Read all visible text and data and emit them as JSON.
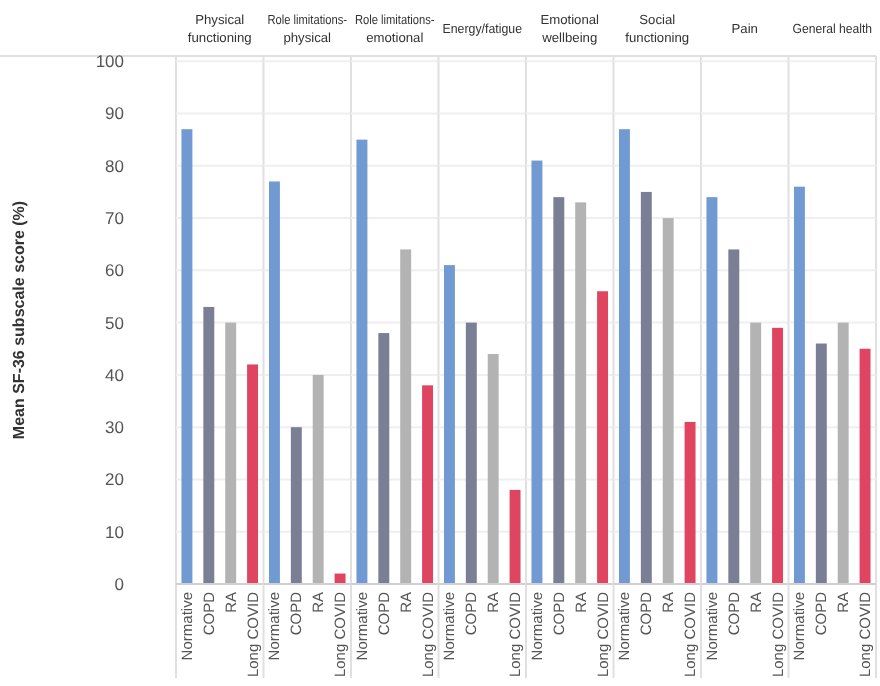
{
  "chart_data": [
    {
      "type": "bar",
      "title": "Physical functioning",
      "ylabel": "Mean SF-36 subscale score (%)",
      "categories": [
        "Normative",
        "COPD",
        "RA",
        "Long COVID"
      ],
      "values": [
        87,
        53,
        50,
        42
      ],
      "colors": [
        "#7199d2",
        "#7b7f95",
        "#b3b3b3",
        "#df4561"
      ],
      "ylim": [
        0,
        101
      ],
      "yticks": [
        0,
        10,
        20,
        30,
        40,
        50,
        60,
        70,
        80,
        90,
        100
      ],
      "grid": "y"
    },
    {
      "type": "bar",
      "title": "Role limitations-physical",
      "categories": [
        "Normative",
        "COPD",
        "RA",
        "Long COVID"
      ],
      "values": [
        77,
        30,
        40,
        2
      ],
      "colors": [
        "#7199d2",
        "#7b7f95",
        "#b3b3b3",
        "#df4561"
      ],
      "ylim": [
        0,
        101
      ],
      "yticks": [
        0,
        10,
        20,
        30,
        40,
        50,
        60,
        70,
        80,
        90,
        100
      ],
      "grid": "y",
      "tick_labels": "x"
    },
    {
      "type": "bar",
      "title": "Role limitations-emotional",
      "categories": [
        "Normative",
        "COPD",
        "RA",
        "Long COVID"
      ],
      "values": [
        85,
        48,
        64,
        38
      ],
      "colors": [
        "#7199d2",
        "#7b7f95",
        "#b3b3b3",
        "#df4561"
      ],
      "ylim": [
        0,
        101
      ],
      "yticks": [
        0,
        10,
        20,
        30,
        40,
        50,
        60,
        70,
        80,
        90,
        100
      ],
      "grid": "y",
      "tick_labels": "x"
    },
    {
      "type": "bar",
      "title": "Energy/fatigue",
      "categories": [
        "Normative",
        "COPD",
        "RA",
        "Long COVID"
      ],
      "values": [
        61,
        50,
        44,
        18
      ],
      "colors": [
        "#7199d2",
        "#7b7f95",
        "#b3b3b3",
        "#df4561"
      ],
      "ylim": [
        0,
        101
      ],
      "yticks": [
        0,
        10,
        20,
        30,
        40,
        50,
        60,
        70,
        80,
        90,
        100
      ],
      "grid": "y",
      "tick_labels": "x"
    },
    {
      "type": "bar",
      "title": "Emotional wellbeing",
      "categories": [
        "Normative",
        "COPD",
        "RA",
        "Long COVID"
      ],
      "values": [
        81,
        74,
        73,
        56
      ],
      "colors": [
        "#7199d2",
        "#7b7f95",
        "#b3b3b3",
        "#df4561"
      ],
      "ylim": [
        0,
        101
      ],
      "yticks": [
        0,
        10,
        20,
        30,
        40,
        50,
        60,
        70,
        80,
        90,
        100
      ],
      "grid": "y",
      "tick_labels": "x"
    },
    {
      "type": "bar",
      "title": "Social functioning",
      "categories": [
        "Normative",
        "COPD",
        "RA",
        "Long COVID"
      ],
      "values": [
        87,
        75,
        70,
        31
      ],
      "colors": [
        "#7199d2",
        "#7b7f95",
        "#b3b3b3",
        "#df4561"
      ],
      "ylim": [
        0,
        101
      ],
      "yticks": [
        0,
        10,
        20,
        30,
        40,
        50,
        60,
        70,
        80,
        90,
        100
      ],
      "grid": "y",
      "tick_labels": "x"
    },
    {
      "type": "bar",
      "title": "Pain",
      "categories": [
        "Normative",
        "COPD",
        "RA",
        "Long COVID"
      ],
      "values": [
        74,
        64,
        50,
        49
      ],
      "colors": [
        "#7199d2",
        "#7b7f95",
        "#b3b3b3",
        "#df4561"
      ],
      "ylim": [
        0,
        101
      ],
      "yticks": [
        0,
        10,
        20,
        30,
        40,
        50,
        60,
        70,
        80,
        90,
        100
      ],
      "grid": "y",
      "tick_labels": "x"
    },
    {
      "type": "bar",
      "title": "General health",
      "categories": [
        "Normative",
        "COPD",
        "RA",
        "Long COVID"
      ],
      "values": [
        76,
        46,
        50,
        45
      ],
      "colors": [
        "#7199d2",
        "#7b7f95",
        "#b3b3b3",
        "#df4561"
      ],
      "ylim": [
        0,
        101
      ],
      "yticks": [
        0,
        10,
        20,
        30,
        40,
        50,
        60,
        70,
        80,
        90,
        100
      ],
      "grid": "y",
      "tick_labels": "x"
    }
  ]
}
